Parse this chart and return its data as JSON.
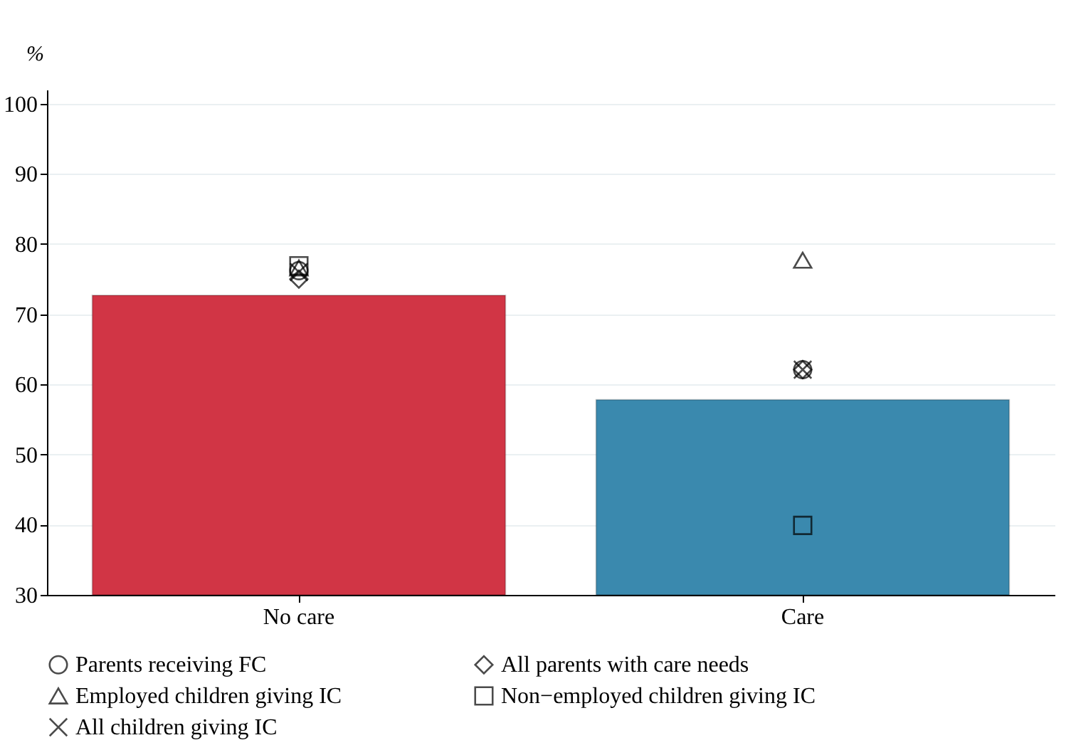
{
  "chart_data": {
    "type": "bar",
    "ylabel": "%",
    "categories": [
      "No care",
      "Care"
    ],
    "series": [
      {
        "colors": [
          "#d13545",
          "#3a89ae"
        ],
        "values": [
          72.7,
          57.8
        ]
      },
      {
        "type": "scatter",
        "name": "Parents receiving FC",
        "marker": "circle",
        "color": "#000000",
        "values": [
          76.2,
          62.1
        ]
      },
      {
        "type": "scatter",
        "name": "All parents with care needs",
        "marker": "diamond",
        "color": "#000000",
        "values": [
          75.0,
          62.1
        ]
      },
      {
        "type": "scatter",
        "name": "Employed children giving IC",
        "marker": "triangle",
        "color": "#000000",
        "values": [
          76.6,
          77.7
        ]
      },
      {
        "type": "scatter",
        "name": "Non−employed children giving IC",
        "marker": "square",
        "color": "#000000",
        "values": [
          76.9,
          39.9
        ]
      },
      {
        "type": "scatter",
        "name": "All children giving IC",
        "marker": "cross",
        "color": "#000000",
        "values": [
          76.0,
          62.1
        ]
      }
    ],
    "ylim": [
      30,
      102
    ],
    "yticks": [
      30,
      40,
      50,
      60,
      70,
      80,
      90,
      100
    ],
    "grid": "y",
    "legend": "bottom"
  }
}
